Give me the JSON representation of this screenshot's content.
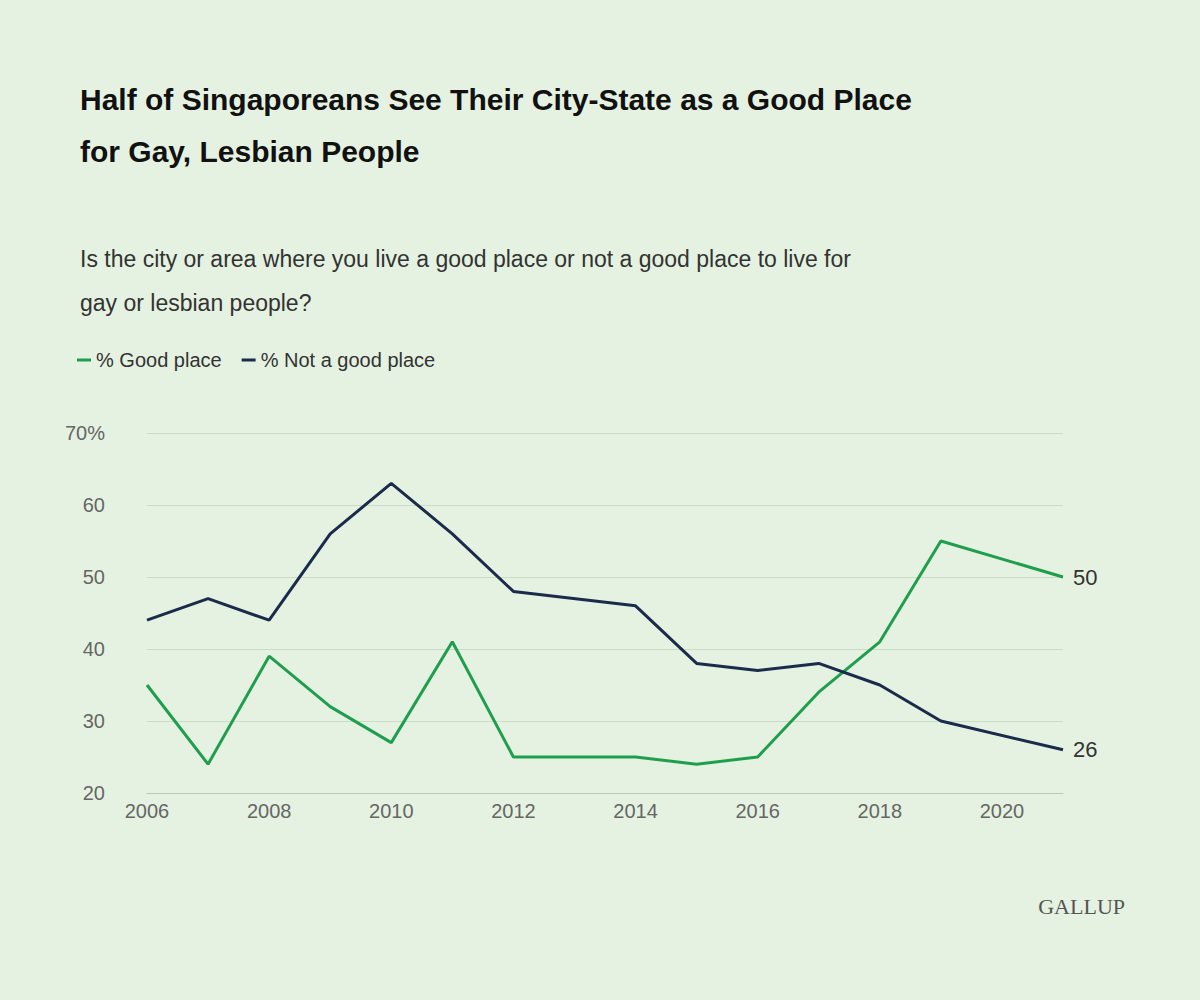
{
  "chart_data": {
    "type": "line",
    "title": "Half of Singaporeans See Their City-State as a Good Place for Gay, Lesbian People",
    "subtitle": "Is the city or area where you live a good place or not a good place to live for gay or lesbian people?",
    "x": [
      2006,
      2007,
      2008,
      2009,
      2010,
      2011,
      2012,
      2014,
      2015,
      2016,
      2017,
      2018,
      2019,
      2021
    ],
    "series": [
      {
        "name": "% Good place",
        "color": "#1f9e4d",
        "values": [
          35,
          24,
          39,
          32,
          27,
          41,
          25,
          25,
          24,
          25,
          34,
          41,
          55,
          50
        ]
      },
      {
        "name": "% Not a good place",
        "color": "#1b2b4b",
        "values": [
          44,
          47,
          44,
          56,
          63,
          56,
          48,
          46,
          38,
          37,
          38,
          35,
          30,
          26
        ]
      }
    ],
    "xlim": [
      2006,
      2021
    ],
    "xticks": [
      2006,
      2008,
      2010,
      2012,
      2014,
      2016,
      2018,
      2020
    ],
    "ylim": [
      20,
      70
    ],
    "yticks": [
      20,
      30,
      40,
      50,
      60,
      {
        "value": 70,
        "label": "70%"
      }
    ],
    "grid": true,
    "legend": "top left",
    "annotations": [
      {
        "series": "% Good place",
        "x": 2021,
        "text": "50"
      },
      {
        "series": "% Not a good place",
        "x": 2021,
        "text": "26"
      }
    ],
    "source": "GALLUP"
  }
}
